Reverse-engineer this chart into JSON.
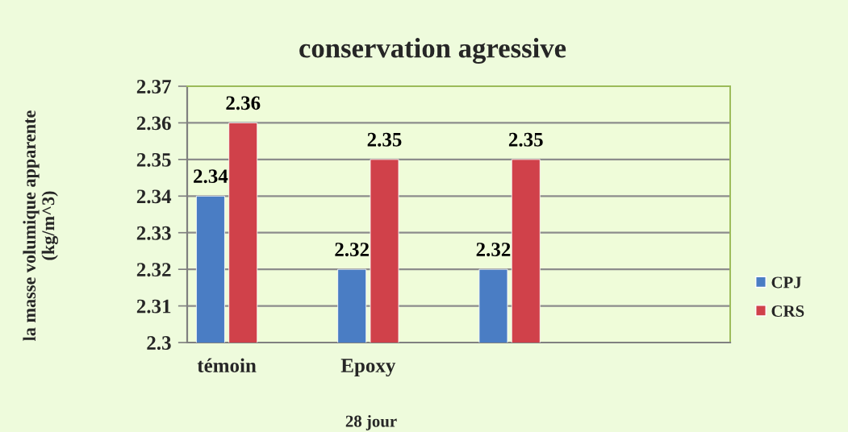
{
  "chart_data": {
    "type": "bar",
    "title": "conservation agressive",
    "xlabel": "28 jour",
    "ylabel": "la masse volumique apparente\n(kg/m^3)",
    "categories": [
      "témoin",
      "Epoxy",
      null
    ],
    "series": [
      {
        "name": "CPJ",
        "color": "#4a7dc4",
        "values": [
          2.34,
          2.32,
          2.32
        ]
      },
      {
        "name": "CRS",
        "color": "#d0414a",
        "values": [
          2.36,
          2.35,
          2.35
        ]
      }
    ],
    "ylim": [
      2.3,
      2.37
    ],
    "yticks": [
      2.3,
      2.31,
      2.32,
      2.33,
      2.34,
      2.35,
      2.36,
      2.37
    ],
    "grid": "y",
    "legend": "right",
    "data_labels": true
  }
}
